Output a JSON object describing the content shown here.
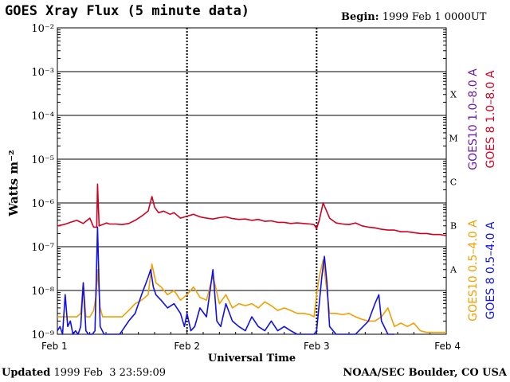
{
  "header": {
    "title": "GOES Xray Flux (5 minute data)",
    "begin_label": "Begin:",
    "begin_value": "1999 Feb 1 0000UT"
  },
  "footer": {
    "updated_label": "Updated",
    "updated_value": "1999 Feb  3 23:59:09",
    "source": "NOAA/SEC Boulder, CO USA"
  },
  "colors": {
    "goes8_long": "#d00020",
    "goes10_long": "#6a1aa8",
    "goes10_short": "#f0a000",
    "goes8_short": "#1010e8",
    "grid": "#000000"
  },
  "chart_data": {
    "type": "line",
    "title": "GOES Xray Flux (5 minute data)",
    "xlabel": "Universal Time",
    "ylabel": "Watts m⁻²",
    "y_scale": "log",
    "ylim": [
      1e-09,
      0.01
    ],
    "x_ticks": [
      "Feb 1",
      "Feb 2",
      "Feb 3",
      "Feb 4"
    ],
    "x_range_days": [
      0,
      3
    ],
    "y_ticks": [
      "10⁻²",
      "10⁻³",
      "10⁻⁴",
      "10⁻⁵",
      "10⁻⁶",
      "10⁻⁷",
      "10⁻⁸",
      "10⁻⁹"
    ],
    "flare_classes": [
      {
        "label": "X",
        "value": 0.0001
      },
      {
        "label": "M",
        "value": 1e-05
      },
      {
        "label": "C",
        "value": 1e-06
      },
      {
        "label": "B",
        "value": 1e-07
      },
      {
        "label": "A",
        "value": 1e-08
      }
    ],
    "legend_right_top": [
      {
        "name": "GOES10 1.0–8.0 A",
        "color": "#6a1aa8"
      },
      {
        "name": "GOES 8 1.0–8.0 A",
        "color": "#d00020"
      }
    ],
    "legend_right_bottom": [
      {
        "name": "GOES10 0.5–4.0 A",
        "color": "#f0a000"
      },
      {
        "name": "GOES 8 0.5–4.0 A",
        "color": "#1010e8"
      }
    ],
    "series": [
      {
        "name": "GOES 8 1.0–8.0 A",
        "color": "#d00020",
        "x": [
          0,
          0.05,
          0.1,
          0.15,
          0.2,
          0.25,
          0.28,
          0.32,
          0.35,
          0.38,
          0.4,
          0.45,
          0.5,
          0.55,
          0.6,
          0.65,
          0.7,
          0.73,
          0.75,
          0.78,
          0.82,
          0.87,
          0.9,
          0.95,
          1.0,
          1.05,
          1.1,
          1.15,
          1.2,
          1.25,
          1.3,
          1.35,
          1.4,
          1.45,
          1.5,
          1.55,
          1.6,
          1.65,
          1.7,
          1.75,
          1.8,
          1.85,
          1.9,
          1.95,
          1.98,
          2.0,
          2.02,
          2.05,
          2.1,
          2.15,
          2.2,
          2.25,
          2.3,
          2.35,
          2.4,
          2.45,
          2.5,
          2.55,
          2.6,
          2.65,
          2.7,
          2.75,
          2.8,
          2.85,
          2.9,
          2.95,
          3.0
        ],
        "y": [
          3e-07,
          3.2e-07,
          3.6e-07,
          4e-07,
          3.4e-07,
          4.5e-07,
          2.8e-07,
          3e-07,
          3.2e-07,
          3.5e-07,
          3.3e-07,
          3.3e-07,
          3.2e-07,
          3.4e-07,
          4e-07,
          5e-07,
          6.5e-07,
          1.4e-06,
          8e-07,
          6e-07,
          6.5e-07,
          5.5e-07,
          6e-07,
          4.5e-07,
          5e-07,
          5.5e-07,
          4.8e-07,
          4.5e-07,
          4.3e-07,
          4.6e-07,
          4.8e-07,
          4.4e-07,
          4.2e-07,
          4.3e-07,
          4e-07,
          4.2e-07,
          3.8e-07,
          3.9e-07,
          3.6e-07,
          3.6e-07,
          3.4e-07,
          3.5e-07,
          3.4e-07,
          3.3e-07,
          3.2e-07,
          2.6e-07,
          4e-07,
          1e-06,
          4.5e-07,
          3.5e-07,
          3.3e-07,
          3.2e-07,
          3.5e-07,
          3e-07,
          2.8e-07,
          2.7e-07,
          2.5e-07,
          2.4e-07,
          2.4e-07,
          2.2e-07,
          2.2e-07,
          2.1e-07,
          2e-07,
          2e-07,
          1.9e-07,
          1.9e-07,
          1.8e-07
        ],
        "peaks": [
          {
            "x": 0.31,
            "y": 2.7e-06
          }
        ]
      },
      {
        "name": "GOES10 0.5–4.0 A",
        "color": "#f0a000",
        "x": [
          0,
          0.05,
          0.1,
          0.15,
          0.18,
          0.2,
          0.22,
          0.25,
          0.28,
          0.3,
          0.31,
          0.33,
          0.35,
          0.4,
          0.45,
          0.5,
          0.55,
          0.6,
          0.65,
          0.7,
          0.73,
          0.76,
          0.8,
          0.85,
          0.9,
          0.95,
          1.0,
          1.05,
          1.1,
          1.15,
          1.2,
          1.25,
          1.3,
          1.35,
          1.4,
          1.45,
          1.5,
          1.55,
          1.6,
          1.65,
          1.7,
          1.75,
          1.8,
          1.85,
          1.9,
          1.95,
          1.98,
          2.0,
          2.02,
          2.05,
          2.1,
          2.15,
          2.2,
          2.25,
          2.3,
          2.35,
          2.4,
          2.45,
          2.5,
          2.55,
          2.6,
          2.65,
          2.7,
          2.75,
          2.8,
          2.85,
          2.9,
          2.95,
          3.0
        ],
        "y": [
          2.5e-09,
          2.5e-09,
          2.5e-09,
          2.5e-09,
          3e-09,
          1.5e-08,
          2.5e-09,
          2.5e-09,
          3.5e-09,
          8e-09,
          3e-08,
          4e-09,
          2.5e-09,
          2.5e-09,
          2.5e-09,
          2.5e-09,
          3.5e-09,
          5e-09,
          6e-09,
          8e-09,
          4e-08,
          1.5e-08,
          1.2e-08,
          8e-09,
          1e-08,
          6e-09,
          8e-09,
          1.2e-08,
          7e-09,
          6e-09,
          2.2e-08,
          5e-09,
          8e-09,
          4e-09,
          5e-09,
          4.5e-09,
          5e-09,
          4e-09,
          5.5e-09,
          4.5e-09,
          3.5e-09,
          4e-09,
          3.5e-09,
          3e-09,
          3e-09,
          2.8e-09,
          2.5e-09,
          8e-09,
          2e-08,
          5e-08,
          3e-09,
          3e-09,
          2.8e-09,
          3e-09,
          2.5e-09,
          2.2e-09,
          2e-09,
          2e-09,
          2.5e-09,
          4e-09,
          1.5e-09,
          1.8e-09,
          1.5e-09,
          1.8e-09,
          1.2e-09,
          1.1e-09,
          1.1e-09,
          1.1e-09,
          1.1e-09
        ]
      },
      {
        "name": "GOES 8 0.5–4.0 A",
        "color": "#1010e8",
        "x": [
          0,
          0.02,
          0.04,
          0.06,
          0.08,
          0.1,
          0.12,
          0.14,
          0.16,
          0.18,
          0.2,
          0.22,
          0.24,
          0.27,
          0.29,
          0.31,
          0.33,
          0.36,
          0.4,
          0.45,
          0.48,
          0.5,
          0.55,
          0.6,
          0.65,
          0.7,
          0.72,
          0.74,
          0.76,
          0.8,
          0.85,
          0.9,
          0.95,
          0.98,
          1.0,
          1.03,
          1.06,
          1.1,
          1.15,
          1.2,
          1.23,
          1.26,
          1.3,
          1.35,
          1.4,
          1.45,
          1.5,
          1.55,
          1.6,
          1.65,
          1.7,
          1.75,
          1.8,
          1.85,
          1.9,
          1.95,
          1.98,
          2.0,
          2.02,
          2.04,
          2.06,
          2.08,
          2.1,
          2.15,
          2.2,
          2.3,
          2.4,
          2.45,
          2.48,
          2.5,
          2.55,
          2.6
        ],
        "y": [
          1.2e-09,
          1.5e-09,
          1e-09,
          8e-09,
          1.5e-09,
          2e-09,
          1e-09,
          1.2e-09,
          1e-09,
          1.5e-09,
          1.5e-08,
          1.2e-09,
          1e-09,
          1e-09,
          1.2e-09,
          2.8e-07,
          1.5e-09,
          1e-09,
          1e-09,
          1e-09,
          1e-09,
          1.2e-09,
          2e-09,
          3e-09,
          8e-09,
          2e-08,
          3e-08,
          1.2e-08,
          8e-09,
          6e-09,
          4e-09,
          5e-09,
          3e-09,
          1.5e-09,
          3e-09,
          1.2e-09,
          1.5e-09,
          4e-09,
          2.5e-09,
          3e-08,
          2e-09,
          1.5e-09,
          5e-09,
          2e-09,
          1.5e-09,
          1.2e-09,
          2.5e-09,
          1.5e-09,
          1.2e-09,
          2e-09,
          1.2e-09,
          1.5e-09,
          1.2e-09,
          1e-09,
          1e-09,
          1e-09,
          1e-09,
          1.2e-09,
          5e-09,
          2e-08,
          6e-08,
          1.5e-08,
          1.5e-09,
          1e-09,
          1e-09,
          1e-09,
          2e-09,
          5e-09,
          8e-09,
          2e-09,
          1e-09,
          1e-09
        ]
      }
    ]
  }
}
